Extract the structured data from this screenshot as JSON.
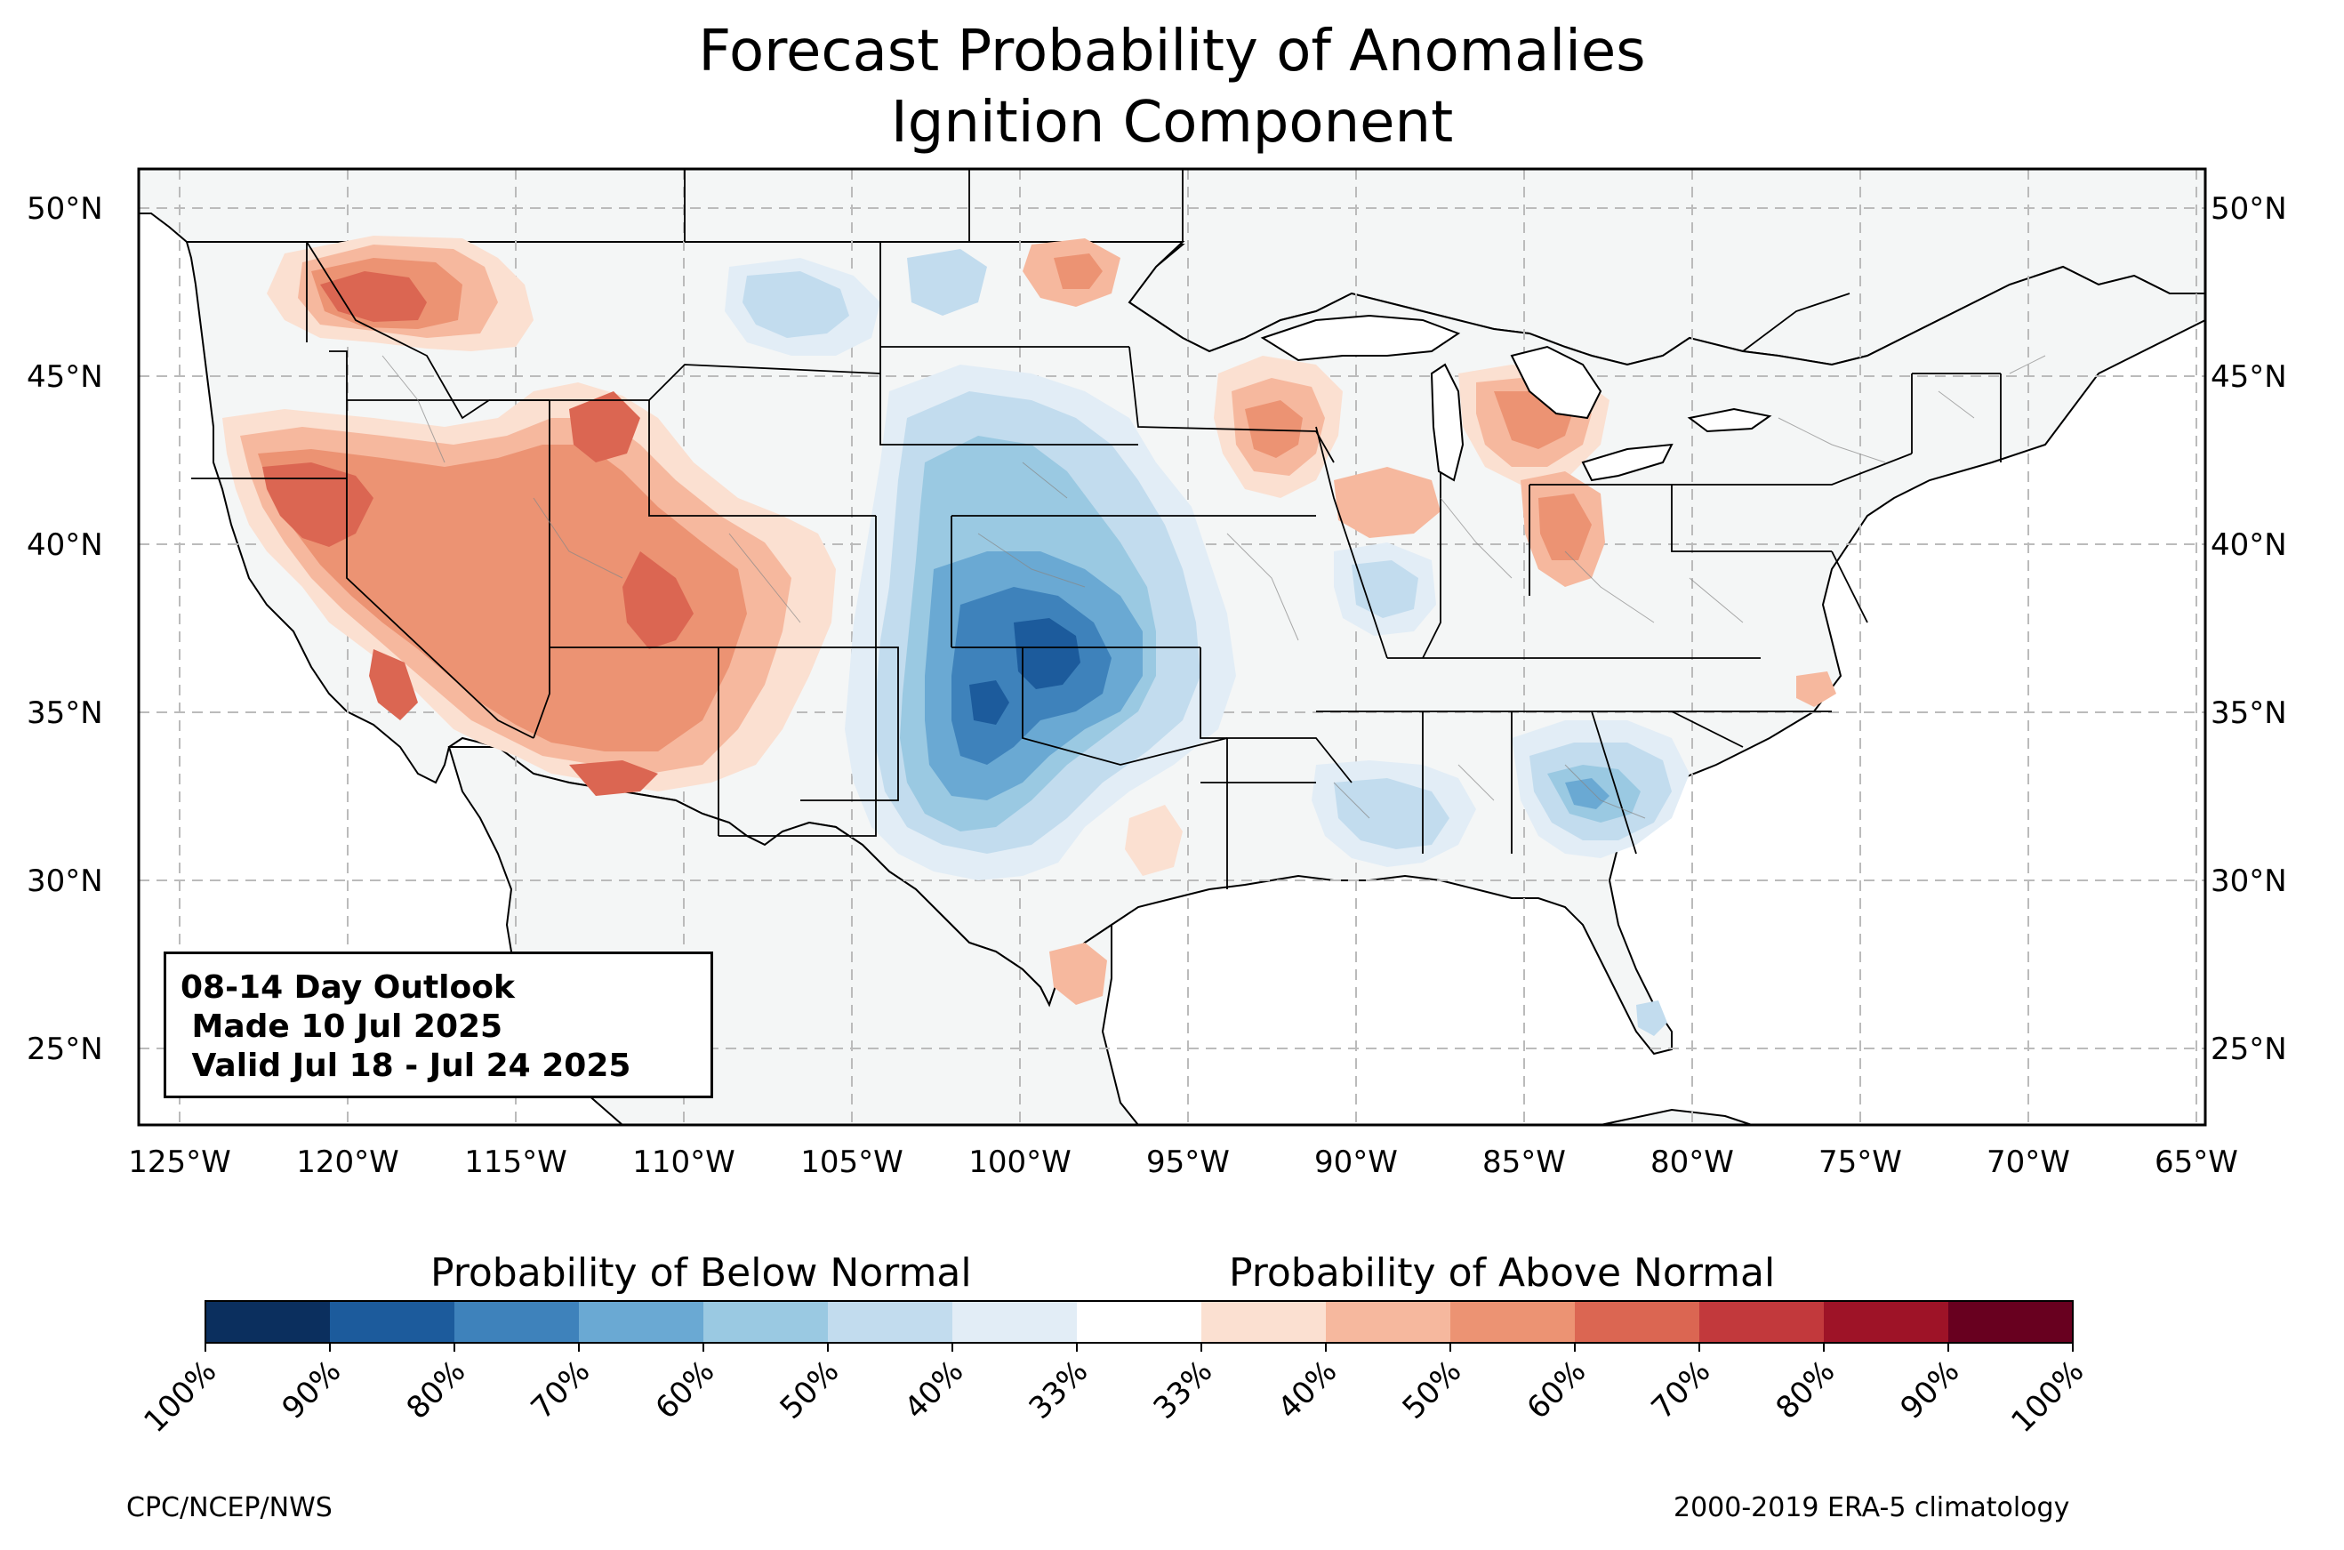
{
  "title": {
    "line1": "Forecast Probability of Anomalies",
    "line2": "Ignition Component"
  },
  "map": {
    "lon_range": [
      -126.5,
      -65
    ],
    "lat_range": [
      22.7,
      51.2
    ],
    "gridlines": true,
    "lat_labels": [
      "50°N",
      "45°N",
      "40°N",
      "35°N",
      "30°N",
      "25°N"
    ],
    "lon_labels": [
      "125°W",
      "120°W",
      "115°W",
      "110°W",
      "105°W",
      "100°W",
      "95°W",
      "90°W",
      "85°W",
      "80°W",
      "75°W",
      "70°W",
      "65°W"
    ],
    "land_color": "#f4f6f6",
    "below_regions": [
      "Southern Plains",
      "Central Plains",
      "Northern Plains",
      "Montana",
      "Lower Mississippi Valley",
      "Southeast",
      "Southern Illinois/Indiana"
    ],
    "above_regions": [
      "Pacific Northwest",
      "California",
      "Great Basin",
      "Southwest",
      "Four Corners",
      "Upper Midwest",
      "Michigan",
      "Ohio Valley",
      "South Texas"
    ]
  },
  "outlook": {
    "line1": "08-14 Day Outlook",
    "line2": " Made 10 Jul 2025",
    "line3": " Valid Jul 18 - Jul 24 2025"
  },
  "colorbar": {
    "below_label": "Probability of Below Normal",
    "above_label": "Probability of Above Normal",
    "colors": [
      "#0b2f5e",
      "#1c5b9c",
      "#3e82bb",
      "#6aa9d3",
      "#9ac9e2",
      "#c2dcee",
      "#e2edf6",
      "#ffffff",
      "#fbe0d1",
      "#f6b89e",
      "#ec9373",
      "#db6652",
      "#c2393c",
      "#9e1327",
      "#68001f"
    ],
    "tick_labels": [
      "100%",
      "90%",
      "80%",
      "70%",
      "60%",
      "50%",
      "40%",
      "33%",
      "33%",
      "40%",
      "50%",
      "60%",
      "70%",
      "80%",
      "90%",
      "100%"
    ]
  },
  "footer": {
    "left": "CPC/NCEP/NWS",
    "right": "2000-2019 ERA-5 climatology"
  }
}
